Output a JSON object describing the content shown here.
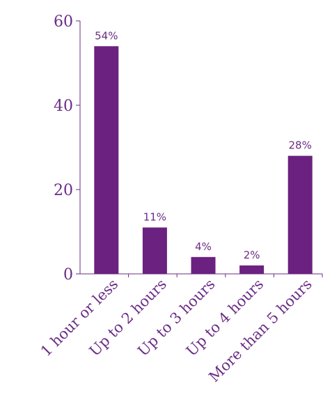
{
  "chart_data": {
    "type": "bar",
    "title": "",
    "xlabel": "",
    "ylabel": "",
    "categories": [
      "1 hour or less",
      "Up to 2 hours",
      "Up to 3 hours",
      "Up to 4 hours",
      "More than 5 hours"
    ],
    "values": [
      54,
      11,
      4,
      2,
      28
    ],
    "data_labels": [
      "54%",
      "11%",
      "4%",
      "2%",
      "28%"
    ],
    "ylim": [
      0,
      60
    ],
    "yticks": [
      0,
      20,
      40,
      60
    ],
    "grid": false,
    "legend": "none",
    "colors": {
      "bar": "#6b2180",
      "axis": "#6b2c86",
      "text": "#6b2c86"
    }
  }
}
